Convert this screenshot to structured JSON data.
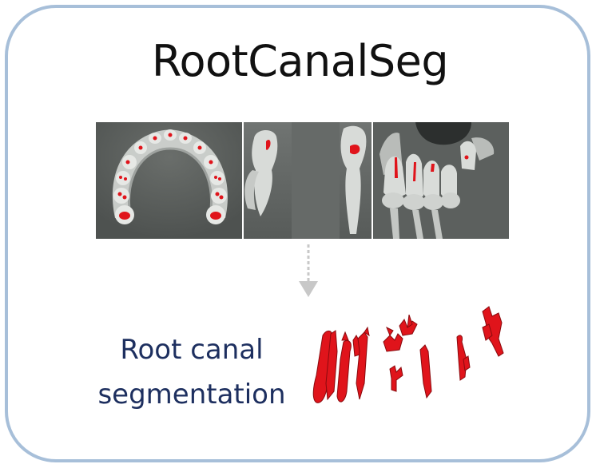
{
  "title": "RootCanalSeg",
  "caption": {
    "line1": "Root canal",
    "line2": "segmentation"
  },
  "colors": {
    "frame": "#a7bfd9",
    "segmentation": "#e0141b",
    "caption_text": "#1d2f5f",
    "arrow": "#c8c8c8",
    "ct_background": "#5a5e5c"
  },
  "panels": [
    "axial-view",
    "sagittal-view",
    "coronal-view"
  ]
}
